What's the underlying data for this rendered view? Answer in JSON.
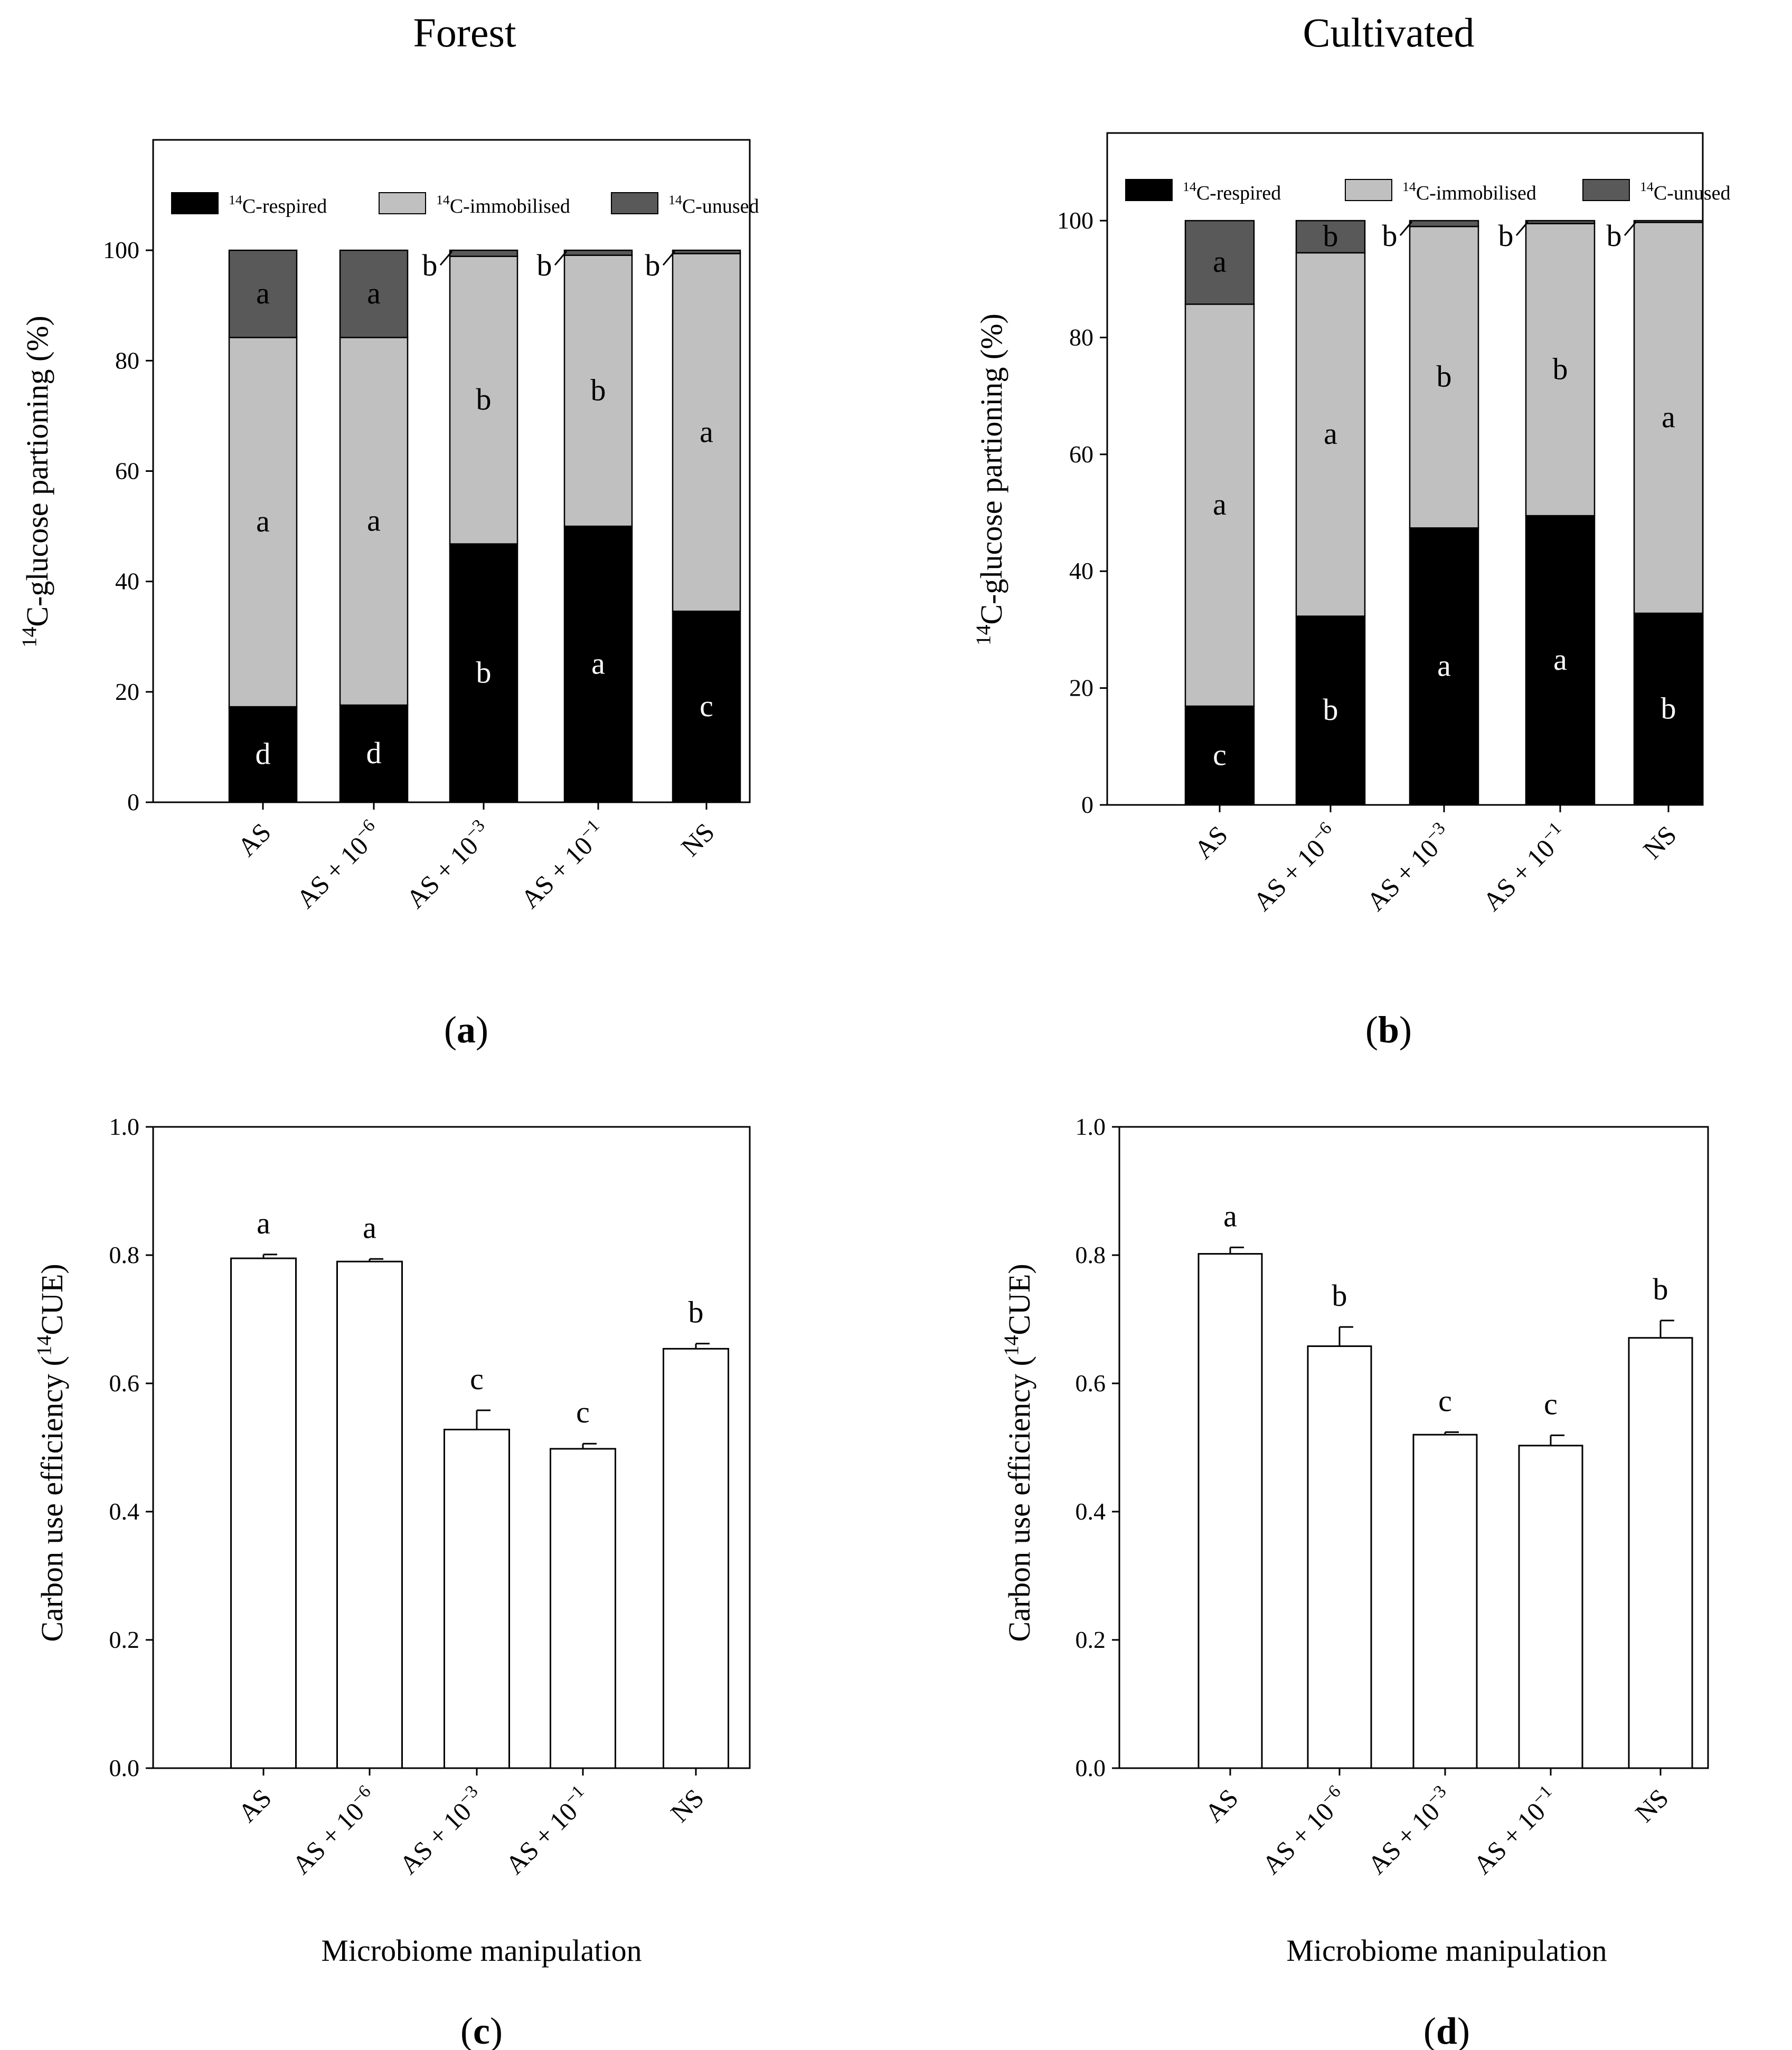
{
  "figure": {
    "titles": [
      "Forest",
      "Cultivated"
    ],
    "xlabel": "Microbiome manipulation"
  },
  "legend": [
    {
      "iso": "14",
      "text": "C-respired",
      "color": "#000000"
    },
    {
      "iso": "14",
      "text": "C-immobilised",
      "color": "#c0c0c0"
    },
    {
      "iso": "14",
      "text": "C-unused",
      "color": "#595959"
    }
  ],
  "categories": [
    {
      "base": "AS",
      "exp": ""
    },
    {
      "base": "AS + 10",
      "exp": "−6"
    },
    {
      "base": "AS + 10",
      "exp": "−3"
    },
    {
      "base": "AS + 10",
      "exp": "−1"
    },
    {
      "base": "NS",
      "exp": ""
    }
  ],
  "chart_data": [
    {
      "panel": "a",
      "panel_label": "a",
      "type": "bar",
      "stacked": true,
      "title": "Forest",
      "ylabel": {
        "iso": "14",
        "text": "C-glucose partioning (%)"
      },
      "ylim": [
        0,
        120
      ],
      "yticks": [
        0,
        20,
        40,
        60,
        80,
        100
      ],
      "categories": [
        "AS",
        "AS + 10−6",
        "AS + 10−3",
        "AS + 10−1",
        "NS"
      ],
      "series": [
        {
          "name": "14C-respired",
          "color": "#000000",
          "values": [
            17.3,
            17.6,
            46.8,
            50.0,
            34.6
          ],
          "letters": [
            "d",
            "d",
            "b",
            "a",
            "c"
          ]
        },
        {
          "name": "14C-immobilised",
          "color": "#c0c0c0",
          "values": [
            66.9,
            66.6,
            52.1,
            49.1,
            64.8
          ],
          "letters": [
            "a",
            "a",
            "b",
            "b",
            "a"
          ]
        },
        {
          "name": "14C-unused",
          "color": "#595959",
          "values": [
            15.8,
            15.8,
            1.1,
            0.9,
            0.6
          ],
          "letters": [
            "a",
            "a",
            "b",
            "b",
            "b"
          ]
        }
      ]
    },
    {
      "panel": "b",
      "panel_label": "b",
      "type": "bar",
      "stacked": true,
      "title": "Cultivated",
      "ylabel": {
        "iso": "14",
        "text": "C-glucose partioning (%)"
      },
      "ylim": [
        0,
        115
      ],
      "yticks": [
        0,
        20,
        40,
        60,
        80,
        100
      ],
      "categories": [
        "AS",
        "AS + 10−6",
        "AS + 10−3",
        "AS + 10−1",
        "NS"
      ],
      "series": [
        {
          "name": "14C-respired",
          "color": "#000000",
          "values": [
            16.9,
            32.3,
            47.4,
            49.5,
            32.8
          ],
          "letters": [
            "c",
            "b",
            "a",
            "a",
            "b"
          ]
        },
        {
          "name": "14C-immobilised",
          "color": "#c0c0c0",
          "values": [
            68.8,
            62.2,
            51.6,
            50.0,
            66.9
          ],
          "letters": [
            "a",
            "a",
            "b",
            "b",
            "a"
          ]
        },
        {
          "name": "14C-unused",
          "color": "#595959",
          "values": [
            14.3,
            5.5,
            1.0,
            0.5,
            0.3
          ],
          "letters": [
            "a",
            "b",
            "b",
            "b",
            "b"
          ]
        }
      ]
    },
    {
      "panel": "c",
      "panel_label": "c",
      "type": "bar",
      "ylabel": {
        "pre": "Carbon use efficiency (",
        "iso": "14",
        "text": "CUE)"
      },
      "xlabel": "Microbiome manipulation",
      "ylim": [
        0,
        1.0
      ],
      "yticks": [
        "0.0",
        "0.2",
        "0.4",
        "0.6",
        "0.8",
        "1.0"
      ],
      "categories": [
        "AS",
        "AS + 10−6",
        "AS + 10−3",
        "AS + 10−1",
        "NS"
      ],
      "values": [
        0.795,
        0.79,
        0.528,
        0.498,
        0.654
      ],
      "errors": [
        0.006,
        0.004,
        0.03,
        0.008,
        0.008
      ],
      "letters": [
        "a",
        "a",
        "c",
        "c",
        "b"
      ]
    },
    {
      "panel": "d",
      "panel_label": "d",
      "type": "bar",
      "ylabel": {
        "pre": "Carbon use efficiency (",
        "iso": "14",
        "text": "CUE)"
      },
      "xlabel": "Microbiome manipulation",
      "ylim": [
        0,
        1.0
      ],
      "yticks": [
        "0.0",
        "0.2",
        "0.4",
        "0.6",
        "0.8",
        "1.0"
      ],
      "categories": [
        "AS",
        "AS + 10−6",
        "AS + 10−3",
        "AS + 10−1",
        "NS"
      ],
      "values": [
        0.802,
        0.658,
        0.52,
        0.503,
        0.671
      ],
      "errors": [
        0.01,
        0.03,
        0.004,
        0.016,
        0.027
      ],
      "letters": [
        "a",
        "b",
        "c",
        "c",
        "b"
      ]
    }
  ]
}
